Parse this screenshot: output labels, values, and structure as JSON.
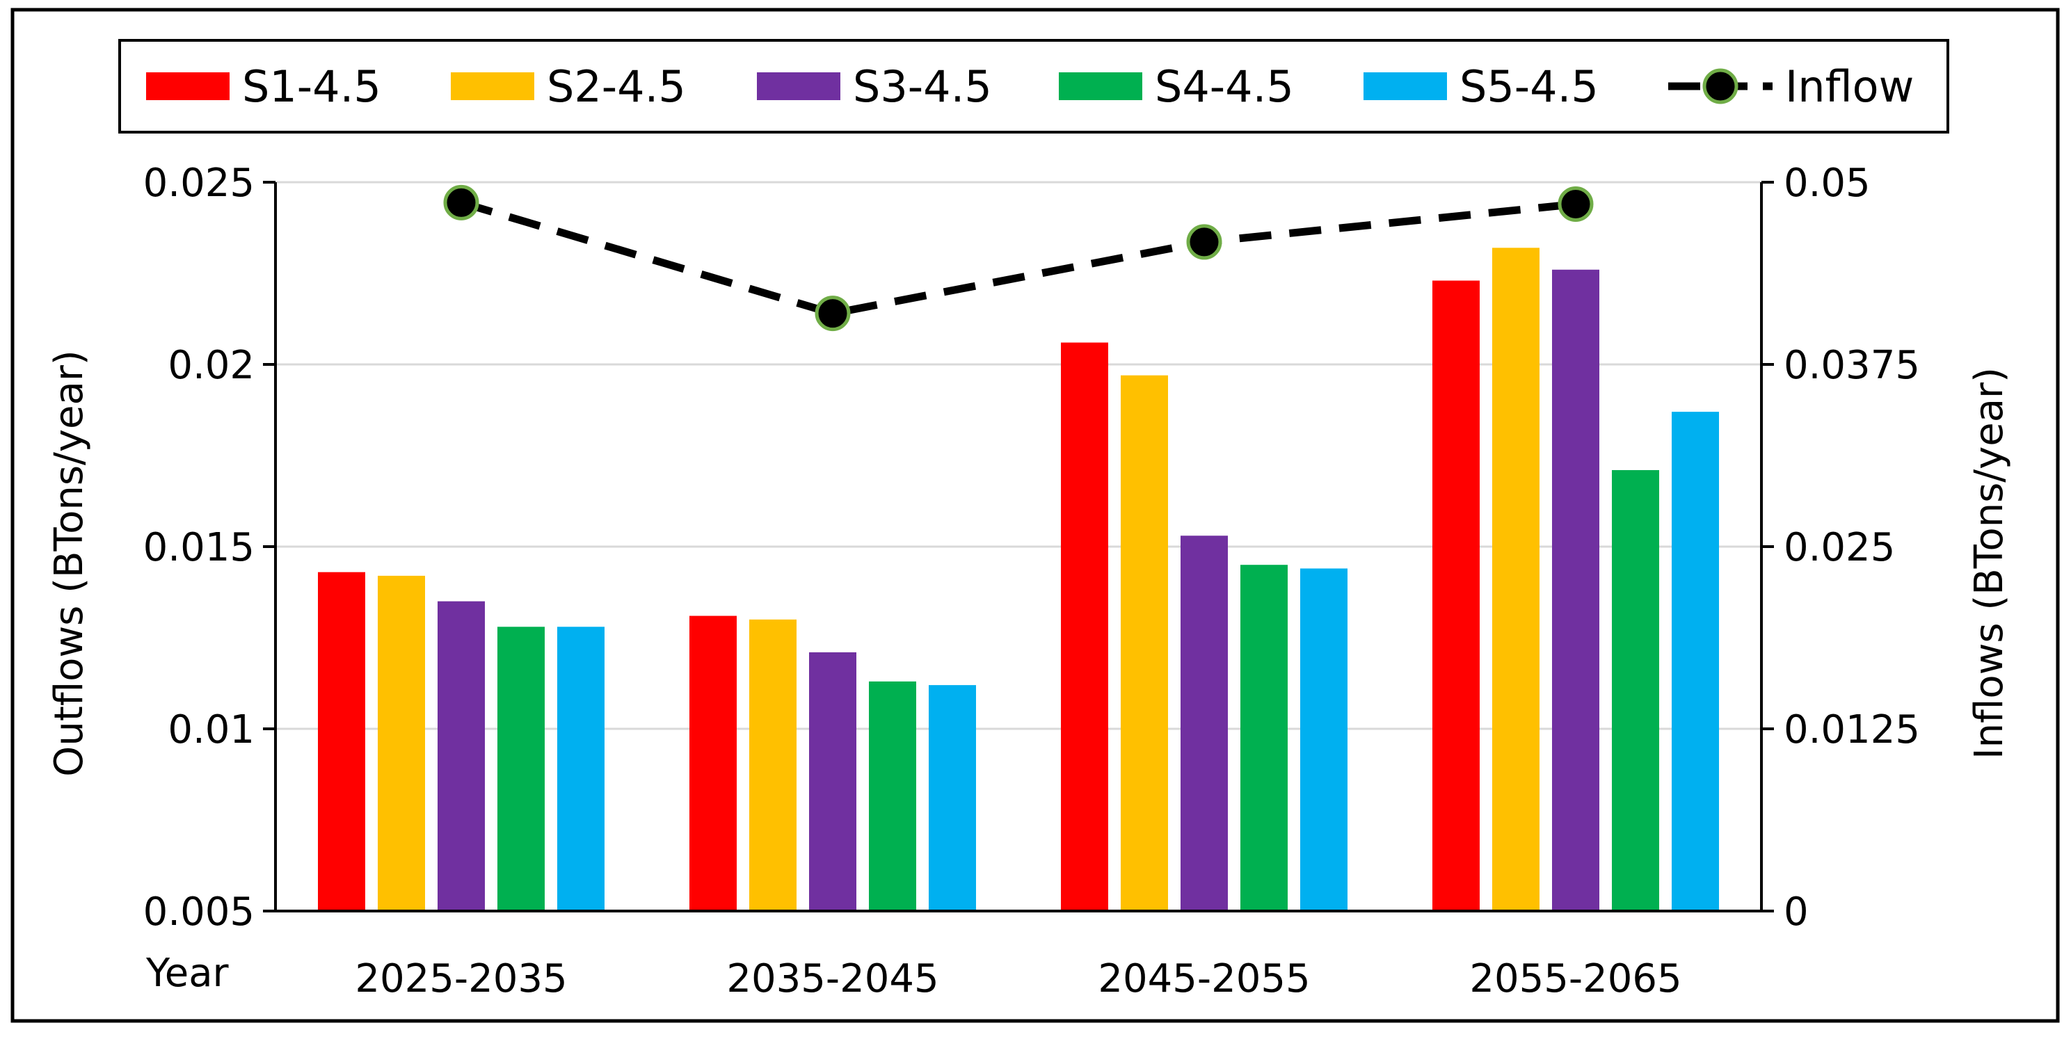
{
  "chart_data": {
    "type": "bar",
    "title": "",
    "xlabel": "Year",
    "ylabel": "Outflows (BTons/year)",
    "y2label": "Inflows (BTons/year)",
    "categories": [
      "2025-2035",
      "2035-2045",
      "2045-2055",
      "2055-2065"
    ],
    "ylim": [
      0.005,
      0.025
    ],
    "yticks": [
      "0.005",
      "0.01",
      "0.015",
      "0.02",
      "0.025"
    ],
    "ytick_values": [
      0.005,
      0.01,
      0.015,
      0.02,
      0.025
    ],
    "y2lim": [
      0,
      0.05
    ],
    "y2ticks": [
      "0",
      "0.0125",
      "0.025",
      "0.0375",
      "0.05"
    ],
    "y2tick_values": [
      0,
      0.0125,
      0.025,
      0.0375,
      0.05
    ],
    "grid": true,
    "legend_position": "top",
    "series": [
      {
        "name": "S1-4.5",
        "color": "#FF0000",
        "values": [
          0.0143,
          0.0131,
          0.0206,
          0.0223
        ]
      },
      {
        "name": "S2-4.5",
        "color": "#FFC000",
        "values": [
          0.0142,
          0.013,
          0.0197,
          0.0232
        ]
      },
      {
        "name": "S3-4.5",
        "color": "#7030A0",
        "values": [
          0.0135,
          0.0121,
          0.0153,
          0.0226
        ]
      },
      {
        "name": "S4-4.5",
        "color": "#00B050",
        "values": [
          0.0128,
          0.0113,
          0.0145,
          0.0171
        ]
      },
      {
        "name": "S5-4.5",
        "color": "#00B0F0",
        "values": [
          0.0128,
          0.0112,
          0.0144,
          0.0187
        ]
      }
    ],
    "line_series": {
      "name": "Inflow",
      "axis": "secondary",
      "line_color": "#000000",
      "marker_fill": "#000000",
      "marker_edge": "#70AD47",
      "values": [
        0.0486,
        0.041,
        0.0459,
        0.0485
      ]
    }
  }
}
